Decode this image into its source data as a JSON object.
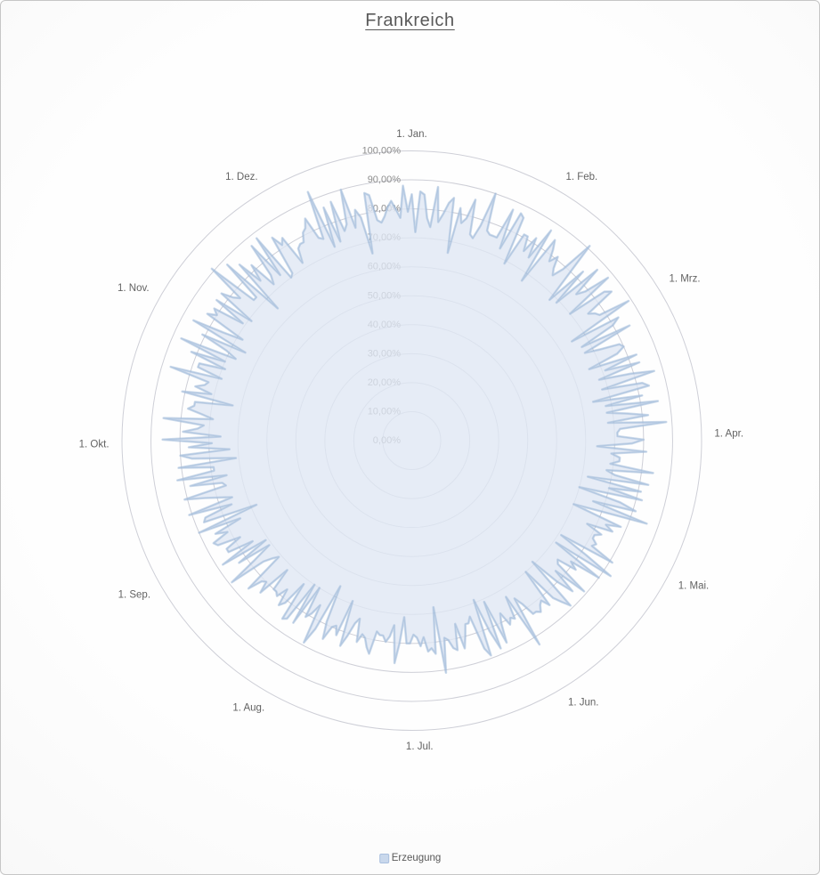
{
  "title": "Frankreich",
  "legend": {
    "position": "bottom",
    "items": [
      {
        "label": "Erzeugung",
        "swatch_fill": "#c9d8ec",
        "swatch_border": "#a9bfde"
      }
    ]
  },
  "colors": {
    "title": "#595959",
    "frame_border": "#c6c6c6",
    "gridline": "#cbccd5",
    "tick_label": "#8c8c8c",
    "category_label": "#636363",
    "series_fill": "#dfe7f3",
    "series_stroke": "#9fbad9"
  },
  "chart_data": {
    "type": "radar-filled",
    "title": "Frankreich",
    "legend_entries": [
      "Erzeugung"
    ],
    "grid": "concentric-circles",
    "angle_axis": {
      "unit": "day-of-year",
      "total_points": 365,
      "direction": "clockwise-from-top",
      "tick_labels": [
        "1. Jan.",
        "1. Feb.",
        "1. Mrz.",
        "1. Apr.",
        "1. Mai.",
        "1. Jun.",
        "1. Jul.",
        "1. Aug.",
        "1. Sep.",
        "1. Okt.",
        "1. Nov.",
        "1. Dez."
      ],
      "tick_day_index": [
        0,
        31,
        59,
        90,
        120,
        151,
        181,
        212,
        243,
        273,
        304,
        334
      ]
    },
    "radial_axis": {
      "min": 0,
      "max": 100,
      "unit": "%",
      "tick_values": [
        0,
        10,
        20,
        30,
        40,
        50,
        60,
        70,
        80,
        90,
        100
      ],
      "tick_labels": [
        "0,00%",
        "10,00%",
        "20,00%",
        "30,00%",
        "40,00%",
        "50,00%",
        "60,00%",
        "70,00%",
        "80,00%",
        "90,00%",
        "100,00%"
      ]
    },
    "series": [
      {
        "name": "Erzeugung",
        "values_are_estimated": true,
        "values": [
          85,
          72,
          86,
          85,
          77,
          74,
          88,
          76,
          79,
          83,
          85,
          66,
          82,
          77,
          79,
          86,
          74,
          73,
          78,
          90,
          77,
          76,
          76,
          76,
          87,
          73,
          87,
          86,
          69,
          81,
          81,
          76,
          82,
          75,
          87,
          67,
          85,
          82,
          78,
          81,
          77,
          75,
          79,
          91,
          78,
          68,
          83,
          69,
          87,
          76,
          79,
          88,
          70,
          84,
          86,
          75,
          77,
          78,
          89,
          65,
          83,
          80,
          67,
          85,
          67,
          72,
          79,
          80,
          77,
          66,
          83,
          71,
          83,
          68,
          79,
          87,
          68,
          82,
          84,
          64,
          81,
          68,
          86,
          68,
          75,
          82,
          68,
          88,
          72,
          71,
          71,
          80,
          76,
          64,
          81,
          69,
          72,
          72,
          69,
          84,
          68,
          71,
          83,
          62,
          81,
          70,
          82,
          60,
          75,
          81,
          66,
          86,
          70,
          60,
          78,
          73,
          76,
          67,
          73,
          71,
          71,
          73,
          72,
          81,
          61,
          72,
          83,
          61,
          80,
          69,
          72,
          65,
          66,
          79,
          67,
          76,
          70,
          59,
          79,
          76,
          73,
          60,
          74,
          71,
          72,
          74,
          73,
          73,
          68,
          65,
          83,
          63,
          71,
          70,
          72,
          67,
          70,
          77,
          61,
          78,
          71,
          59,
          79,
          76,
          64,
          66,
          66,
          70,
          74,
          65,
          74,
          73,
          70,
          69,
          81,
          58,
          74,
          72,
          73,
          68,
          71,
          68,
          67,
          70,
          70,
          61,
          70,
          77,
          64,
          68,
          70,
          68,
          68,
          67,
          75,
          73,
          70,
          69,
          72,
          64,
          66,
          71,
          75,
          59,
          72,
          69,
          70,
          75,
          69,
          56,
          73,
          79,
          65,
          69,
          71,
          60,
          75,
          60,
          75,
          76,
          62,
          71,
          73,
          67,
          71,
          70,
          70,
          62,
          74,
          70,
          71,
          76,
          61,
          63,
          66,
          79,
          68,
          61,
          73,
          61,
          78,
          65,
          74,
          74,
          68,
          76,
          77,
          71,
          75,
          65,
          80,
          58,
          77,
          76,
          66,
          81,
          65,
          69,
          74,
          81,
          66,
          67,
          78,
          65,
          82,
          69,
          69,
          81,
          61,
          76,
          80,
          63,
          77,
          69,
          86,
          66,
          79,
          74,
          72,
          86,
          69,
          73,
          78,
          76,
          76,
          63,
          81,
          71,
          77,
          74,
          73,
          87,
          69,
          78,
          78,
          69,
          82,
          70,
          87,
          67,
          71,
          81,
          65,
          86,
          75,
          68,
          83,
          80,
          82,
          71,
          83,
          69,
          83,
          79,
          77,
          91,
          73,
          73,
          88,
          65,
          85,
          76,
          82,
          72,
          75,
          87,
          73,
          88,
          70,
          71,
          85,
          81,
          83,
          72,
          77,
          78,
          78,
          81,
          82,
          85,
          77,
          76,
          93,
          72,
          86,
          73,
          87,
          76,
          78,
          90,
          76,
          82,
          79,
          66,
          87,
          86,
          77,
          76,
          78,
          81,
          83,
          80,
          77,
          88,
          79
        ]
      }
    ]
  }
}
